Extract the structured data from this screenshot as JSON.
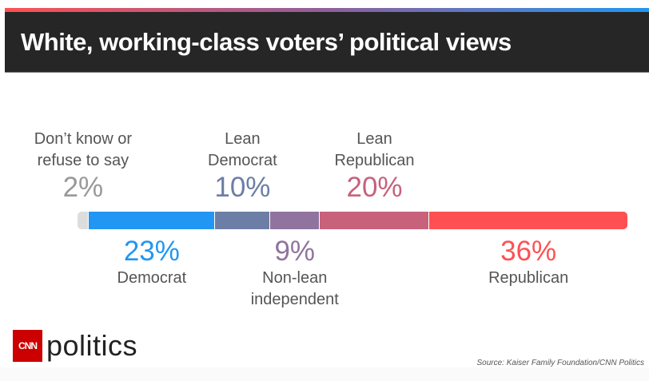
{
  "title": "White, working-class voters’ political views",
  "logo": {
    "cnn": "CNN",
    "politics": "politics"
  },
  "source": "Source: Kaiser Family Foundation/CNN Politics",
  "chart_data": {
    "type": "bar",
    "orientation": "horizontal-stacked",
    "title": "White, working-class voters’ political views",
    "categories": [
      "Don’t know or refuse to say",
      "Democrat",
      "Lean Democrat",
      "Non-lean independent",
      "Lean Republican",
      "Republican"
    ],
    "values": [
      2,
      23,
      10,
      9,
      20,
      36
    ],
    "labels": [
      "2%",
      "23%",
      "10%",
      "9%",
      "20%",
      "36%"
    ],
    "colors": [
      "#dddddd",
      "#2196f3",
      "#6c7ea6",
      "#90739e",
      "#c8617a",
      "#fe5052"
    ],
    "positions": [
      "above",
      "below",
      "above",
      "below",
      "above",
      "below"
    ],
    "text_lines": [
      [
        "Don’t know or",
        "refuse to say"
      ],
      [
        "Democrat"
      ],
      [
        "Lean",
        "Democrat"
      ],
      [
        "Non-lean",
        "independent"
      ],
      [
        "Lean",
        "Republican"
      ],
      [
        "Republican"
      ]
    ],
    "pct_colors": [
      "#999999",
      "#2196f3",
      "#6c7ea6",
      "#90739e",
      "#c8617a",
      "#fe5052"
    ]
  }
}
